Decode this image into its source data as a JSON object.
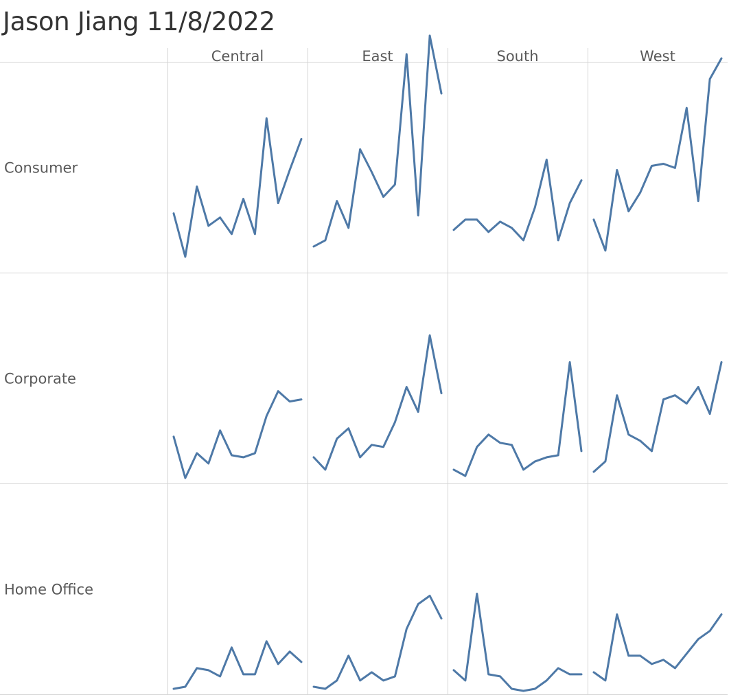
{
  "title": "Jason Jiang 11/8/2022",
  "chart_data": {
    "type": "line",
    "layout": "trellis",
    "columns": [
      "Central",
      "East",
      "South",
      "West"
    ],
    "rows": [
      "Consumer",
      "Corporate",
      "Home Office"
    ],
    "ylim": [
      0,
      100
    ],
    "grid": true,
    "line_color": "#4e79a7",
    "panels": [
      {
        "row": "Consumer",
        "column": "Central",
        "values": [
          28,
          7,
          41,
          22,
          26,
          18,
          35,
          18,
          74,
          33,
          49,
          64
        ]
      },
      {
        "row": "Consumer",
        "column": "East",
        "values": [
          12,
          15,
          34,
          21,
          59,
          48,
          36,
          42,
          105,
          27,
          114,
          86
        ]
      },
      {
        "row": "Consumer",
        "column": "South",
        "values": [
          20,
          25,
          25,
          19,
          24,
          21,
          15,
          31,
          54,
          15,
          33,
          44
        ]
      },
      {
        "row": "Consumer",
        "column": "West",
        "values": [
          25,
          10,
          49,
          29,
          38,
          51,
          52,
          50,
          79,
          34,
          93,
          103
        ]
      },
      {
        "row": "Corporate",
        "column": "Central",
        "values": [
          22,
          2,
          14,
          9,
          25,
          13,
          12,
          14,
          32,
          44,
          39,
          40
        ]
      },
      {
        "row": "Corporate",
        "column": "East",
        "values": [
          12,
          6,
          21,
          26,
          12,
          18,
          17,
          29,
          46,
          34,
          71,
          43
        ]
      },
      {
        "row": "Corporate",
        "column": "South",
        "values": [
          6,
          3,
          17,
          23,
          19,
          18,
          6,
          10,
          12,
          13,
          58,
          15
        ]
      },
      {
        "row": "Corporate",
        "column": "West",
        "values": [
          5,
          10,
          42,
          23,
          20,
          15,
          40,
          42,
          38,
          46,
          33,
          58
        ]
      },
      {
        "row": "Home Office",
        "column": "Central",
        "values": [
          2,
          3,
          12,
          11,
          8,
          22,
          9,
          9,
          25,
          14,
          20,
          15
        ]
      },
      {
        "row": "Home Office",
        "column": "East",
        "values": [
          3,
          2,
          6,
          18,
          6,
          10,
          6,
          8,
          31,
          43,
          47,
          36
        ]
      },
      {
        "row": "Home Office",
        "column": "South",
        "values": [
          11,
          6,
          48,
          9,
          8,
          2,
          1,
          2,
          6,
          12,
          9,
          9
        ]
      },
      {
        "row": "Home Office",
        "column": "West",
        "values": [
          10,
          6,
          38,
          18,
          18,
          14,
          16,
          12,
          19,
          26,
          30,
          38
        ]
      }
    ]
  }
}
